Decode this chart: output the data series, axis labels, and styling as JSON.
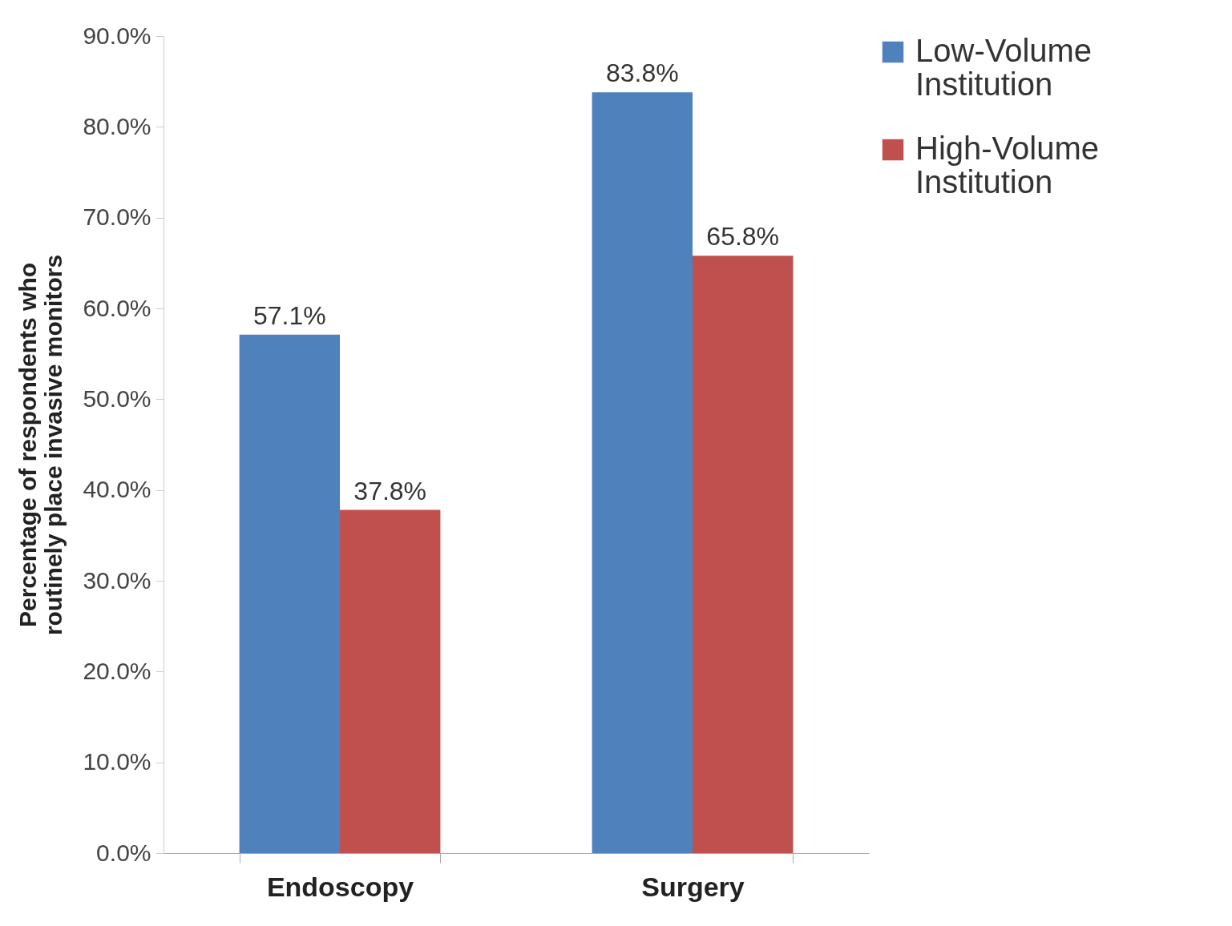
{
  "chart_data": {
    "type": "bar",
    "ylabel": "Percentage of respondents who routinely place invasive monitors",
    "categories": [
      "Endoscopy",
      "Surgery"
    ],
    "series": [
      {
        "name": "Low-Volume Institution",
        "color": "#4f81bd",
        "values": [
          57.1,
          83.8
        ],
        "value_labels": [
          "57.1%",
          "83.8%"
        ]
      },
      {
        "name": "High-Volume Institution",
        "color": "#c0504d",
        "values": [
          37.8,
          65.8
        ],
        "value_labels": [
          "37.8%",
          "65.8%"
        ]
      }
    ],
    "ylim": [
      0,
      90
    ],
    "yticks": [
      {
        "value": 0,
        "label": "0.0%"
      },
      {
        "value": 10,
        "label": "10.0%"
      },
      {
        "value": 20,
        "label": "20.0%"
      },
      {
        "value": 30,
        "label": "30.0%"
      },
      {
        "value": 40,
        "label": "40.0%"
      },
      {
        "value": 50,
        "label": "50.0%"
      },
      {
        "value": 60,
        "label": "60.0%"
      },
      {
        "value": 70,
        "label": "70.0%"
      },
      {
        "value": 80,
        "label": "80.0%"
      },
      {
        "value": 90,
        "label": "90.0%"
      }
    ],
    "grid": false,
    "legend": "right"
  }
}
